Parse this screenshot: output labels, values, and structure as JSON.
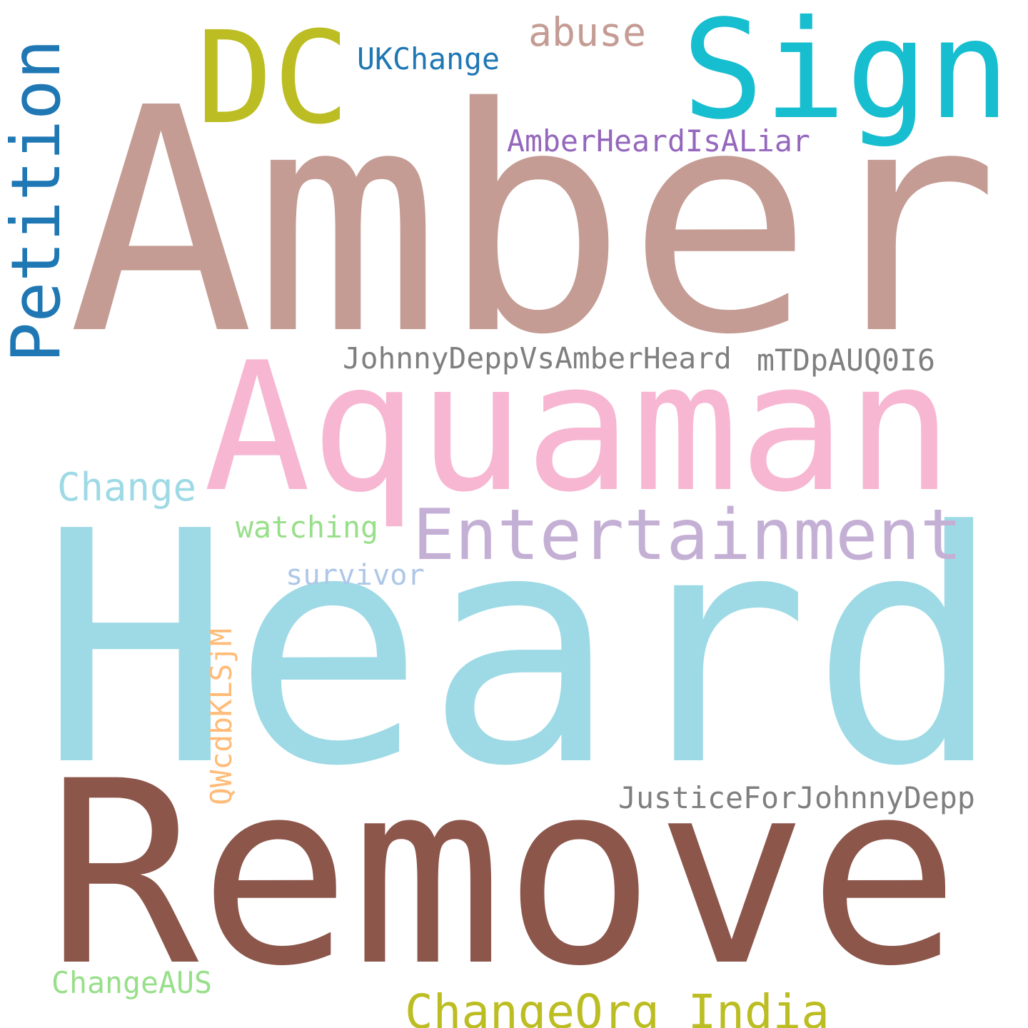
{
  "words": [
    {
      "id": "amber",
      "text": "Amber",
      "color": "#c49c94"
    },
    {
      "id": "heard",
      "text": "Heard",
      "color": "#9edae5"
    },
    {
      "id": "remove",
      "text": "Remove",
      "color": "#8c564b"
    },
    {
      "id": "aquaman",
      "text": "Aquaman",
      "color": "#f7b6d2"
    },
    {
      "id": "sign",
      "text": "Sign",
      "color": "#17becf"
    },
    {
      "id": "dc",
      "text": "DC",
      "color": "#bcbd22"
    },
    {
      "id": "petition",
      "text": "Petition",
      "color": "#1f77b4"
    },
    {
      "id": "entertainment",
      "text": "Entertainment",
      "color": "#c5b0d5"
    },
    {
      "id": "change",
      "text": "Change",
      "color": "#9edae5"
    },
    {
      "id": "changeorg-india",
      "text": "ChangeOrg_India",
      "color": "#bcbd22"
    },
    {
      "id": "abuse",
      "text": "abuse",
      "color": "#c49c94"
    },
    {
      "id": "ukchange",
      "text": "UKChange",
      "color": "#1f77b4"
    },
    {
      "id": "amberheardisaliar",
      "text": "AmberHeardIsALiar",
      "color": "#9467bd"
    },
    {
      "id": "johnnydeppvsamberheard",
      "text": "JohnnyDeppVsAmberHeard",
      "color": "#7f7f7f"
    },
    {
      "id": "mtdpauq0i6",
      "text": "mTDpAUQ0I6",
      "color": "#7f7f7f"
    },
    {
      "id": "watching",
      "text": "watching",
      "color": "#98df8a"
    },
    {
      "id": "survivor",
      "text": "survivor",
      "color": "#aec7e8"
    },
    {
      "id": "qwcdbklsjm",
      "text": "QWcdbKLSjM",
      "color": "#ffbb78"
    },
    {
      "id": "justiceforjohnnydepp",
      "text": "JusticeForJohnnyDepp",
      "color": "#7f7f7f"
    },
    {
      "id": "changeaus",
      "text": "ChangeAUS",
      "color": "#98df8a"
    }
  ]
}
